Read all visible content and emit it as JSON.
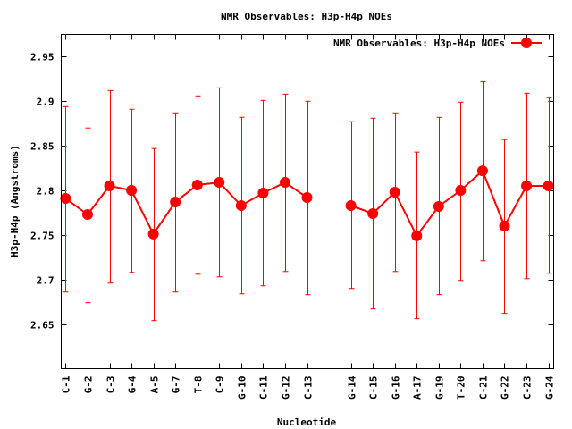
{
  "chart_data": {
    "type": "line",
    "title": "NMR Observables: H3p-H4p NOEs",
    "xlabel": "Nucleotide",
    "ylabel": "H3p-H4p (Angstroms)",
    "ylim": [
      2.6,
      2.975
    ],
    "xlim": [
      -0.2,
      22.24
    ],
    "grid": false,
    "legend": {
      "position": "top-right",
      "entries": [
        "NMR Observables: H3p-H4p NOEs"
      ]
    },
    "yticks": [
      2.65,
      2.7,
      2.75,
      2.8,
      2.85,
      2.9,
      2.95
    ],
    "ytick_labels": [
      "2.65",
      "2.7",
      "2.75",
      "2.8",
      "2.85",
      "2.9",
      "2.95"
    ],
    "color": "#ff0000",
    "series": [
      {
        "name": "NMR Observables: H3p-H4p NOEs",
        "points": [
          {
            "label": "C-1",
            "x": 0,
            "y": 2.791,
            "ylow": 2.686,
            "yhigh": 2.894
          },
          {
            "label": "G-2",
            "x": 1,
            "y": 2.773,
            "ylow": 2.674,
            "yhigh": 2.87
          },
          {
            "label": "C-3",
            "x": 2,
            "y": 2.805,
            "ylow": 2.696,
            "yhigh": 2.912
          },
          {
            "label": "G-4",
            "x": 3,
            "y": 2.8,
            "ylow": 2.708,
            "yhigh": 2.891
          },
          {
            "label": "A-5",
            "x": 4,
            "y": 2.751,
            "ylow": 2.654,
            "yhigh": 2.847
          },
          {
            "label": "G-7",
            "x": 5,
            "y": 2.787,
            "ylow": 2.686,
            "yhigh": 2.887
          },
          {
            "label": "T-8",
            "x": 6,
            "y": 2.806,
            "ylow": 2.706,
            "yhigh": 2.906
          },
          {
            "label": "C-9",
            "x": 7,
            "y": 2.809,
            "ylow": 2.703,
            "yhigh": 2.915
          },
          {
            "label": "G-10",
            "x": 8,
            "y": 2.783,
            "ylow": 2.684,
            "yhigh": 2.882
          },
          {
            "label": "C-11",
            "x": 9,
            "y": 2.797,
            "ylow": 2.693,
            "yhigh": 2.901
          },
          {
            "label": "G-12",
            "x": 10,
            "y": 2.809,
            "ylow": 2.709,
            "yhigh": 2.908
          },
          {
            "label": "C-13",
            "x": 11,
            "y": 2.792,
            "ylow": 2.683,
            "yhigh": 2.9
          },
          {
            "label": "G-14",
            "x": 13,
            "y": 2.783,
            "ylow": 2.69,
            "yhigh": 2.877
          },
          {
            "label": "C-15",
            "x": 14,
            "y": 2.774,
            "ylow": 2.667,
            "yhigh": 2.881
          },
          {
            "label": "G-16",
            "x": 15,
            "y": 2.798,
            "ylow": 2.709,
            "yhigh": 2.887
          },
          {
            "label": "A-17",
            "x": 16,
            "y": 2.749,
            "ylow": 2.656,
            "yhigh": 2.843
          },
          {
            "label": "G-19",
            "x": 17,
            "y": 2.782,
            "ylow": 2.683,
            "yhigh": 2.882
          },
          {
            "label": "T-20",
            "x": 18,
            "y": 2.8,
            "ylow": 2.699,
            "yhigh": 2.899
          },
          {
            "label": "C-21",
            "x": 19,
            "y": 2.822,
            "ylow": 2.721,
            "yhigh": 2.922
          },
          {
            "label": "G-22",
            "x": 20,
            "y": 2.76,
            "ylow": 2.662,
            "yhigh": 2.857
          },
          {
            "label": "C-23",
            "x": 21,
            "y": 2.805,
            "ylow": 2.701,
            "yhigh": 2.909
          },
          {
            "label": "G-24",
            "x": 22,
            "y": 2.805,
            "ylow": 2.707,
            "yhigh": 2.904
          }
        ]
      }
    ]
  }
}
